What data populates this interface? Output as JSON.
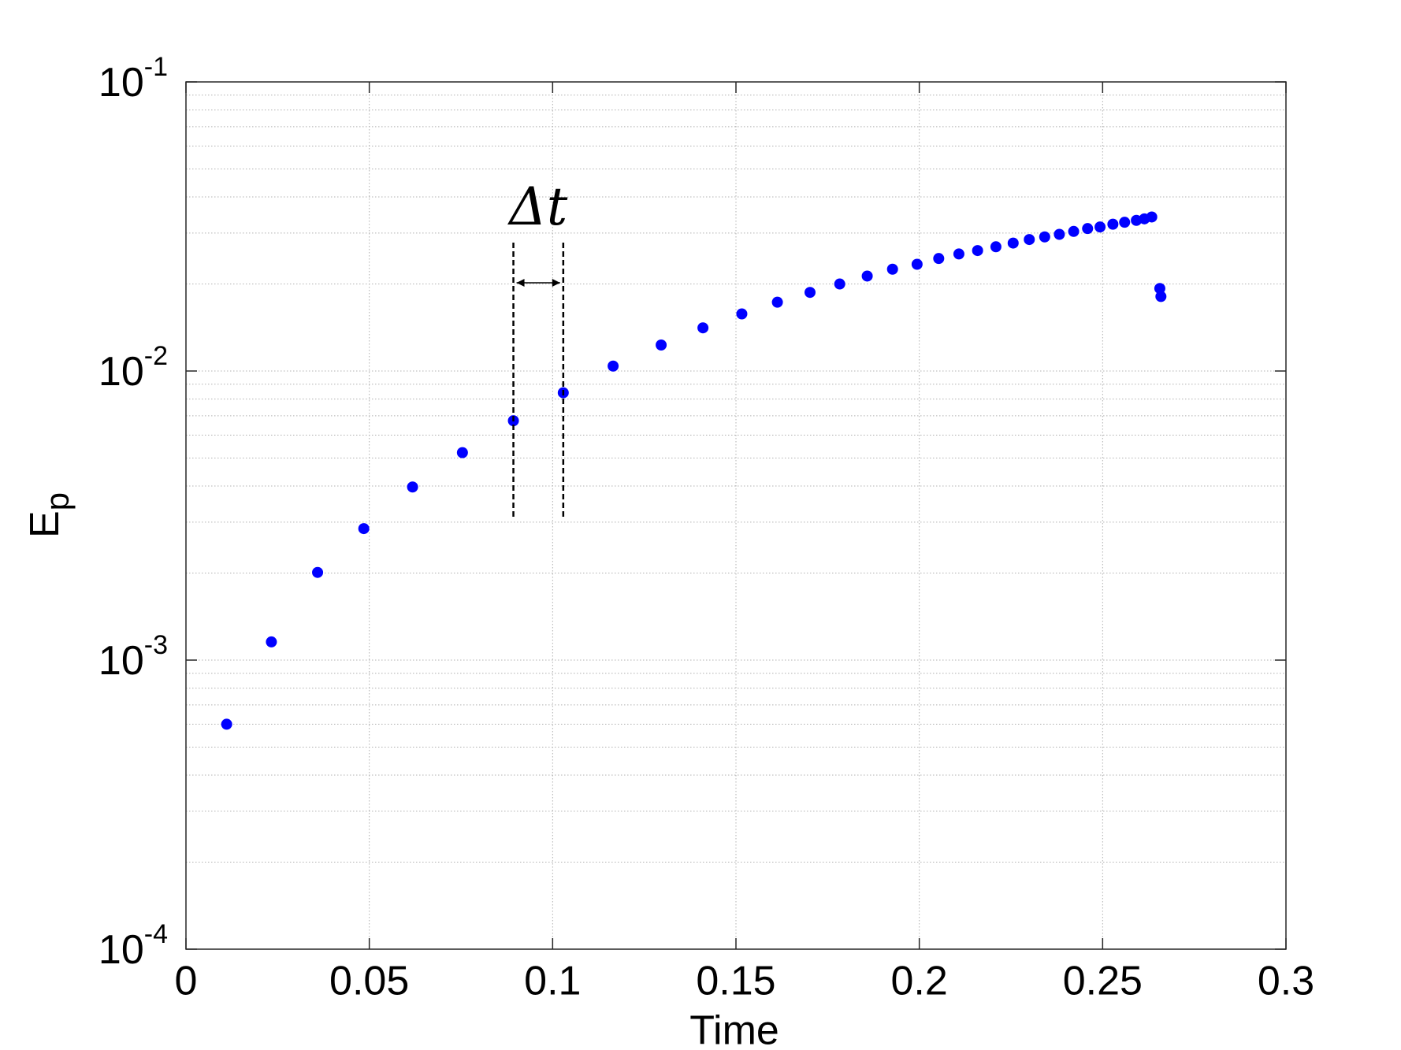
{
  "chart_data": {
    "type": "scatter",
    "xlabel": "Time",
    "ylabel": "E",
    "ylabel_subscript": "p",
    "annotation": "Δt",
    "x": [
      0.0111,
      0.0233,
      0.0359,
      0.0485,
      0.0618,
      0.0754,
      0.0893,
      0.1029,
      0.1165,
      0.1296,
      0.141,
      0.1516,
      0.1613,
      0.1702,
      0.1783,
      0.1858,
      0.1927,
      0.1994,
      0.2053,
      0.2108,
      0.2159,
      0.2209,
      0.2256,
      0.23,
      0.2342,
      0.2382,
      0.2421,
      0.2459,
      0.2493,
      0.2528,
      0.256,
      0.2592,
      0.2614,
      0.2634,
      0.2656,
      0.2659
    ],
    "series": [
      {
        "color": "#0000ff",
        "values": [
          0.0006,
          0.001156,
          0.00201,
          0.00285,
          0.00397,
          0.00522,
          0.00673,
          0.00841,
          0.0104,
          0.0123,
          0.0141,
          0.01576,
          0.0173,
          0.0187,
          0.02,
          0.0213,
          0.0225,
          0.0234,
          0.0245,
          0.0254,
          0.0261,
          0.0269,
          0.0277,
          0.0285,
          0.0291,
          0.0297,
          0.0304,
          0.0311,
          0.0315,
          0.0322,
          0.0327,
          0.0332,
          0.0336,
          0.0341,
          0.0193,
          0.0181
        ]
      }
    ],
    "xlim": [
      0,
      0.3
    ],
    "xticks": [
      0,
      0.05,
      0.1,
      0.15,
      0.2,
      0.25,
      0.3
    ],
    "ylim": [
      0.0001,
      0.1
    ],
    "yticks": [
      {
        "value": 0.0001,
        "label": "10",
        "exponent": "-4"
      },
      {
        "value": 0.001,
        "label": "10",
        "exponent": "-3"
      },
      {
        "value": 0.01,
        "label": "10",
        "exponent": "-2"
      },
      {
        "value": 0.1,
        "label": "10",
        "exponent": "-1"
      }
    ],
    "ylog": true,
    "grid": true,
    "minor_grid": true
  }
}
